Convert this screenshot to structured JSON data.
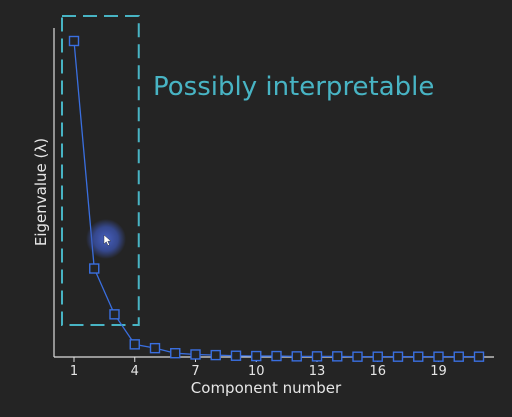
{
  "chart_data": {
    "type": "line",
    "xlabel": "Component number",
    "ylabel": "Eigenvalue (λ)",
    "annotation": "Possibly interpretable",
    "x_ticks": [
      1,
      4,
      7,
      10,
      13,
      16,
      19
    ],
    "xlim": [
      0,
      22
    ],
    "ylim": [
      0,
      1
    ],
    "y_ticks_shown": false,
    "grid": false,
    "series": [
      {
        "x": [
          1,
          2,
          3,
          4,
          5,
          6,
          7,
          8,
          9,
          10,
          11,
          12,
          13,
          14,
          15,
          16,
          17,
          18,
          19,
          20,
          21
        ],
        "y": [
          1.0,
          0.28,
          0.135,
          0.04,
          0.028,
          0.012,
          0.008,
          0.006,
          0.004,
          0.003,
          0.003,
          0.002,
          0.002,
          0.002,
          0.001,
          0.001,
          0.001,
          0.001,
          0.001,
          0.001,
          0.001
        ],
        "color": "#3a6fe0",
        "marker": "square-open"
      }
    ],
    "highlight_box": {
      "x_range": [
        1,
        4
      ],
      "color": "#48b4c4",
      "style": "dashed"
    }
  },
  "colors": {
    "background": "#242424",
    "axis": "#dcdcdc",
    "series": "#3a6fe0",
    "highlight": "#48b4c4"
  }
}
